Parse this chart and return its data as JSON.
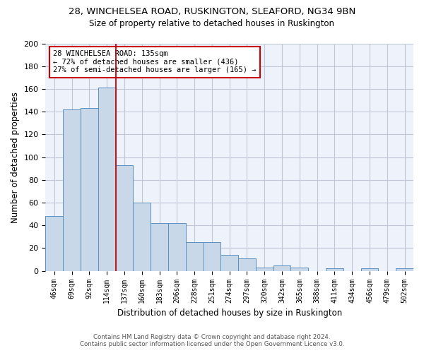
{
  "title1": "28, WINCHELSEA ROAD, RUSKINGTON, SLEAFORD, NG34 9BN",
  "title2": "Size of property relative to detached houses in Ruskington",
  "xlabel": "Distribution of detached houses by size in Ruskington",
  "ylabel": "Number of detached properties",
  "categories": [
    "46sqm",
    "69sqm",
    "92sqm",
    "114sqm",
    "137sqm",
    "160sqm",
    "183sqm",
    "206sqm",
    "228sqm",
    "251sqm",
    "274sqm",
    "297sqm",
    "320sqm",
    "342sqm",
    "365sqm",
    "388sqm",
    "411sqm",
    "434sqm",
    "456sqm",
    "479sqm",
    "502sqm"
  ],
  "values": [
    48,
    142,
    143,
    161,
    93,
    60,
    42,
    42,
    25,
    25,
    14,
    11,
    3,
    5,
    3,
    0,
    2,
    0,
    2,
    0,
    2
  ],
  "bar_color": "#c8d8e8",
  "bar_edge_color": "#5a8fc0",
  "grid_color": "#c0c8d8",
  "bg_color": "#eef2fa",
  "vline_color": "#cc0000",
  "vline_x": 3.5,
  "annotation_text": "28 WINCHELSEA ROAD: 135sqm\n← 72% of detached houses are smaller (436)\n27% of semi-detached houses are larger (165) →",
  "annotation_box_color": "#ffffff",
  "annotation_box_edge": "#cc0000",
  "footer1": "Contains HM Land Registry data © Crown copyright and database right 2024.",
  "footer2": "Contains public sector information licensed under the Open Government Licence v3.0.",
  "ylim": [
    0,
    200
  ],
  "yticks": [
    0,
    20,
    40,
    60,
    80,
    100,
    120,
    140,
    160,
    180,
    200
  ]
}
